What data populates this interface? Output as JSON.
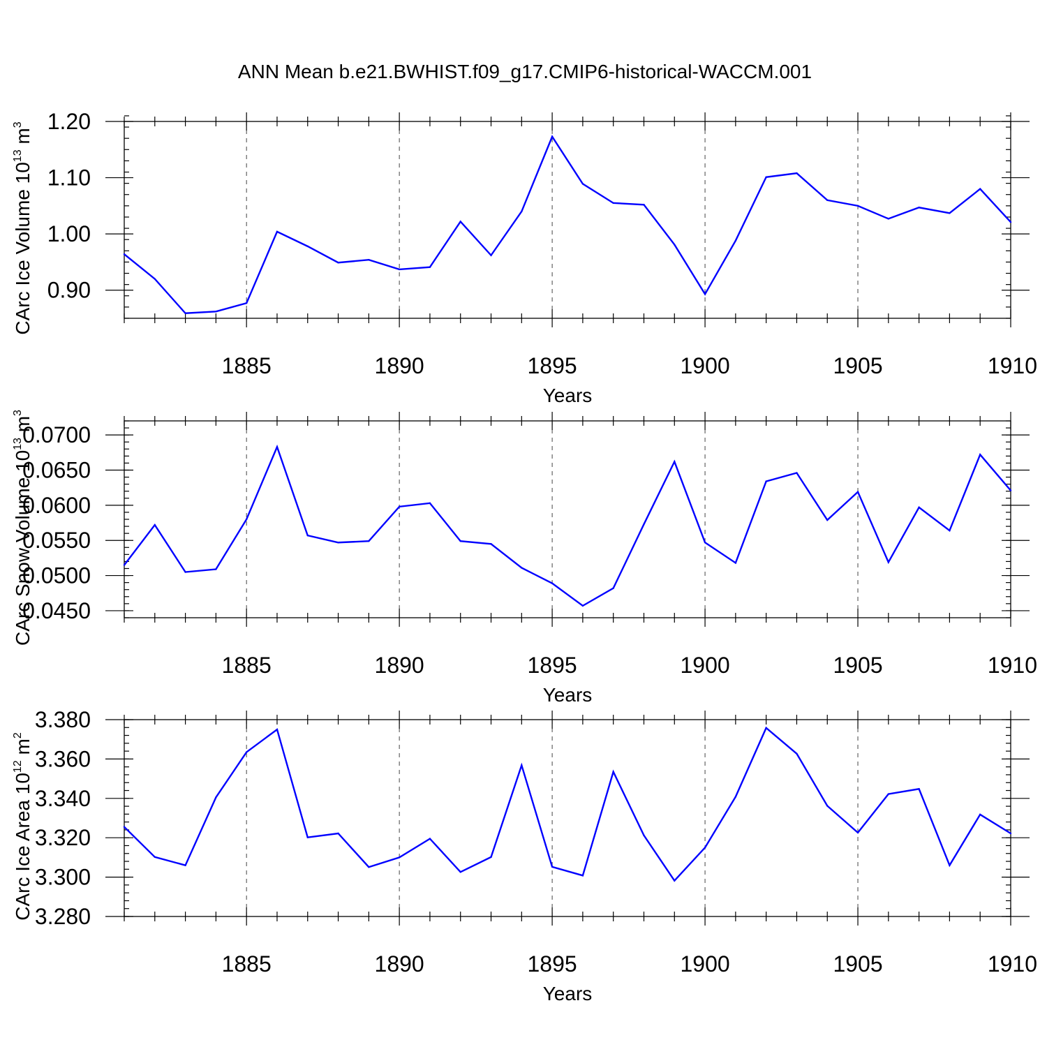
{
  "figure": {
    "title": "ANN Mean b.e21.BWHIST.f09_g17.CMIP6-historical-WACCM.001"
  },
  "colors": {
    "series": "#0000ff",
    "axes": "#000000"
  },
  "chart_data": [
    {
      "type": "line",
      "ylabel": "CArc Ice Volume 10",
      "ylabel_sup": "13",
      "ylabel_unit": " m",
      "ylabel_unit_sup": "3",
      "xlabel": "Years",
      "xlim": [
        1881,
        1910
      ],
      "ylim": [
        0.85,
        1.2
      ],
      "yticks": [
        0.9,
        1.0,
        1.1,
        1.2
      ],
      "ytick_labels": [
        "0.90",
        "1.00",
        "1.10",
        "1.20"
      ],
      "yminor_step": 0.02,
      "xticks": [
        1885,
        1890,
        1895,
        1900,
        1905,
        1910
      ],
      "xtick_labels": [
        "1885",
        "1890",
        "1895",
        "1900",
        "1905",
        "1910"
      ],
      "grid": "dashed vertical at major x ticks",
      "x": [
        1881,
        1882,
        1883,
        1884,
        1885,
        1886,
        1887,
        1888,
        1889,
        1890,
        1891,
        1892,
        1893,
        1894,
        1895,
        1896,
        1897,
        1898,
        1899,
        1900,
        1901,
        1902,
        1903,
        1904,
        1905,
        1906,
        1907,
        1908,
        1909,
        1910
      ],
      "y": [
        0.964,
        0.92,
        0.859,
        0.862,
        0.877,
        1.004,
        0.978,
        0.949,
        0.954,
        0.937,
        0.941,
        1.022,
        0.962,
        1.04,
        1.173,
        1.089,
        1.055,
        1.052,
        0.981,
        0.893,
        0.988,
        1.101,
        1.108,
        1.06,
        1.05,
        1.027,
        1.047,
        1.037,
        1.08,
        1.021
      ]
    },
    {
      "type": "line",
      "ylabel": "CArc Snow Volume 10",
      "ylabel_sup": "13",
      "ylabel_unit": " m",
      "ylabel_unit_sup": "3",
      "xlabel": "Years",
      "xlim": [
        1881,
        1910
      ],
      "ylim": [
        0.044,
        0.072
      ],
      "yticks": [
        0.045,
        0.05,
        0.055,
        0.06,
        0.065,
        0.07
      ],
      "ytick_labels": [
        "0.0450",
        "0.0500",
        "0.0550",
        "0.0600",
        "0.0650",
        "0.0700"
      ],
      "yminor_step": 0.001,
      "xticks": [
        1885,
        1890,
        1895,
        1900,
        1905,
        1910
      ],
      "xtick_labels": [
        "1885",
        "1890",
        "1895",
        "1900",
        "1905",
        "1910"
      ],
      "grid": "dashed vertical at major x ticks",
      "x": [
        1881,
        1882,
        1883,
        1884,
        1885,
        1886,
        1887,
        1888,
        1889,
        1890,
        1891,
        1892,
        1893,
        1894,
        1895,
        1896,
        1897,
        1898,
        1899,
        1900,
        1901,
        1902,
        1903,
        1904,
        1905,
        1906,
        1907,
        1908,
        1909,
        1910
      ],
      "y": [
        0.0515,
        0.0572,
        0.0505,
        0.0509,
        0.058,
        0.0683,
        0.0557,
        0.0547,
        0.0549,
        0.0598,
        0.0603,
        0.0549,
        0.0545,
        0.0511,
        0.0489,
        0.0457,
        0.0482,
        0.0573,
        0.0662,
        0.0547,
        0.0518,
        0.0634,
        0.0646,
        0.0579,
        0.0619,
        0.0519,
        0.0597,
        0.0564,
        0.0672,
        0.0621
      ]
    },
    {
      "type": "line",
      "ylabel": "CArc Ice Area 10",
      "ylabel_sup": "12",
      "ylabel_unit": " m",
      "ylabel_unit_sup": "2",
      "xlabel": "Years",
      "xlim": [
        1881,
        1910
      ],
      "ylim": [
        3.28,
        3.38
      ],
      "yticks": [
        3.28,
        3.3,
        3.32,
        3.34,
        3.36,
        3.38
      ],
      "ytick_labels": [
        "3.280",
        "3.300",
        "3.320",
        "3.340",
        "3.360",
        "3.380"
      ],
      "yminor_step": 0.004,
      "xticks": [
        1885,
        1890,
        1895,
        1900,
        1905,
        1910
      ],
      "xtick_labels": [
        "1885",
        "1890",
        "1895",
        "1900",
        "1905",
        "1910"
      ],
      "grid": "dashed vertical at major x ticks",
      "x": [
        1881,
        1882,
        1883,
        1884,
        1885,
        1886,
        1887,
        1888,
        1889,
        1890,
        1891,
        1892,
        1893,
        1894,
        1895,
        1896,
        1897,
        1898,
        1899,
        1900,
        1901,
        1902,
        1903,
        1904,
        1905,
        1906,
        1907,
        1908,
        1909,
        1910
      ],
      "y": [
        3.3255,
        3.3102,
        3.306,
        3.3405,
        3.3635,
        3.375,
        3.3202,
        3.3222,
        3.3051,
        3.31,
        3.3195,
        3.3026,
        3.3102,
        3.3568,
        3.3052,
        3.3008,
        3.3535,
        3.3212,
        3.2982,
        3.315,
        3.3408,
        3.3758,
        3.3627,
        3.3362,
        3.3226,
        3.3422,
        3.3448,
        3.306,
        3.3318,
        3.3222
      ]
    }
  ]
}
